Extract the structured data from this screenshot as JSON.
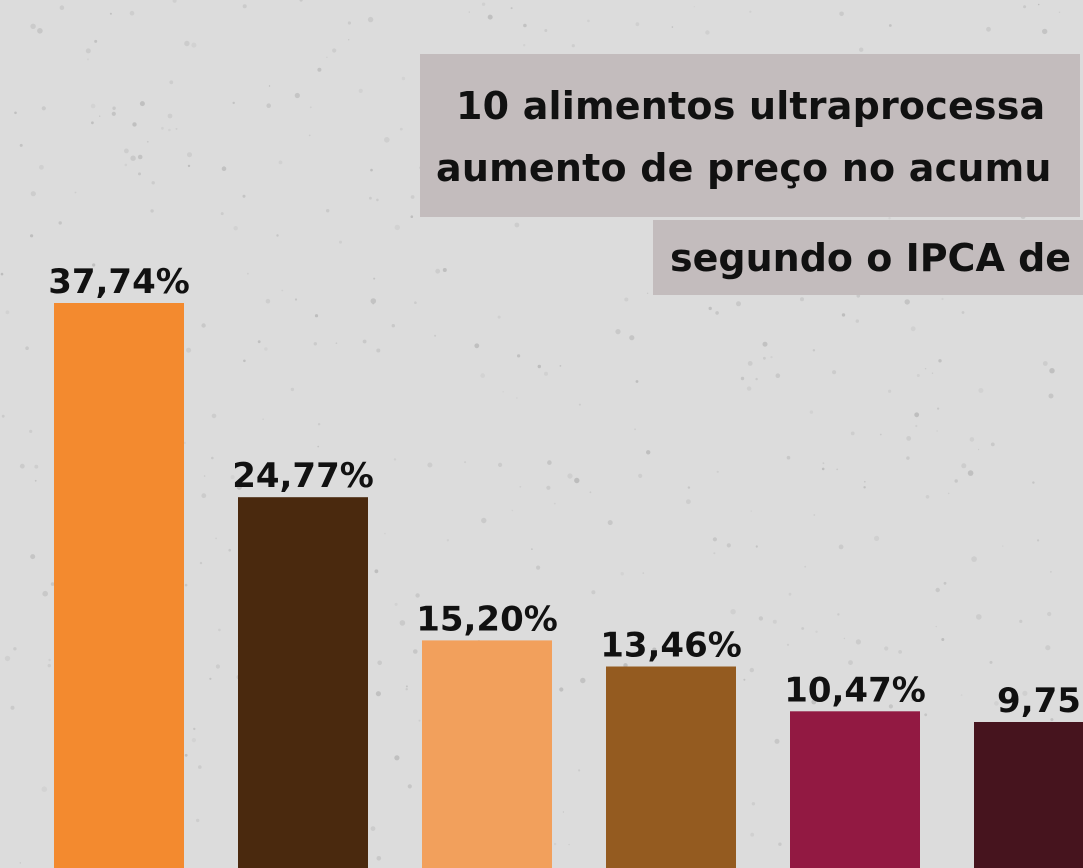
{
  "title": {
    "line1": "10 alimentos ultraprocessa",
    "line2": "aumento de preço no acumu",
    "subtitle": "segundo o IPCA de"
  },
  "chart_data": {
    "type": "bar",
    "values": [
      37.74,
      24.77,
      15.2,
      13.46,
      10.47,
      9.75
    ],
    "value_labels": [
      "37,74%",
      "24,77%",
      "15,20%",
      "13,46%",
      "10,47%",
      "9,75"
    ],
    "colors": [
      "#f38a2f",
      "#4a290e",
      "#f2a05c",
      "#945b20",
      "#921942",
      "#46141e"
    ],
    "ylim": [
      0,
      37.74
    ]
  },
  "colors": {
    "background": "#dcdcdc",
    "title_box": "#c3bcbd",
    "text": "#111111"
  }
}
